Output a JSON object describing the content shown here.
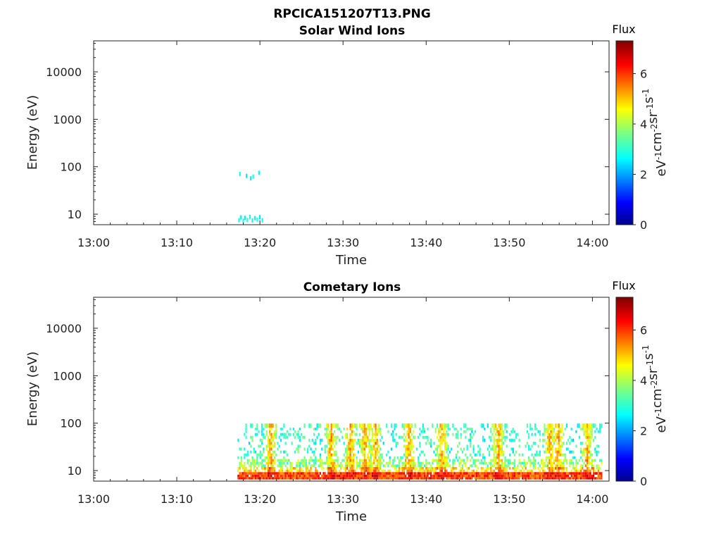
{
  "figure": {
    "title": "RPCICA151207T13.PNG"
  },
  "chart_data": [
    {
      "type": "heatmap",
      "title": "Solar Wind Ions",
      "xlabel": "Time",
      "ylabel": "Energy (eV)",
      "x_range": [
        "13:00",
        "14:02"
      ],
      "x_ticks": [
        "13:00",
        "13:10",
        "13:20",
        "13:30",
        "13:40",
        "13:50",
        "14:00"
      ],
      "y_scale": "log",
      "y_range": [
        6,
        45000
      ],
      "y_ticks": [
        "10",
        "100",
        "1000",
        "10000"
      ],
      "colorbar": {
        "title": "Flux",
        "units": "eV-1cm-2sr-1s-1",
        "range": [
          0,
          7.3
        ],
        "ticks": [
          "0",
          "2",
          "4",
          "6"
        ],
        "colormap": "jet"
      },
      "grid": false,
      "data_description": "Sparse low-level flux (~2.5-3.2) only between 13:17 and 13:21; energies ~7-9 eV and ~55-75 eV.",
      "cells": [
        {
          "t": 17.4,
          "e": 7.2,
          "v": 2.9
        },
        {
          "t": 17.6,
          "e": 8.3,
          "v": 2.7
        },
        {
          "t": 17.9,
          "e": 7.0,
          "v": 3.0
        },
        {
          "t": 18.1,
          "e": 8.1,
          "v": 2.6
        },
        {
          "t": 18.4,
          "e": 7.3,
          "v": 3.1
        },
        {
          "t": 18.7,
          "e": 8.5,
          "v": 2.8
        },
        {
          "t": 19.0,
          "e": 7.1,
          "v": 2.9
        },
        {
          "t": 19.3,
          "e": 8.0,
          "v": 2.7
        },
        {
          "t": 19.6,
          "e": 7.4,
          "v": 3.0
        },
        {
          "t": 19.9,
          "e": 8.4,
          "v": 2.6
        },
        {
          "t": 20.2,
          "e": 7.2,
          "v": 2.8
        },
        {
          "t": 17.5,
          "e": 68,
          "v": 2.8
        },
        {
          "t": 18.3,
          "e": 62,
          "v": 2.6
        },
        {
          "t": 18.8,
          "e": 55,
          "v": 2.7
        },
        {
          "t": 19.1,
          "e": 60,
          "v": 2.9
        },
        {
          "t": 19.8,
          "e": 72,
          "v": 2.7
        }
      ]
    },
    {
      "type": "heatmap",
      "title": "Cometary Ions",
      "xlabel": "Time",
      "ylabel": "Energy (eV)",
      "x_range": [
        "13:00",
        "14:02"
      ],
      "x_ticks": [
        "13:00",
        "13:10",
        "13:20",
        "13:30",
        "13:40",
        "13:50",
        "14:00"
      ],
      "y_scale": "log",
      "y_range": [
        6,
        45000
      ],
      "y_ticks": [
        "10",
        "100",
        "1000",
        "10000"
      ],
      "colorbar": {
        "title": "Flux",
        "units": "eV-1cm-2sr-1s-1",
        "range": [
          0,
          7.3
        ],
        "ticks": [
          "0",
          "2",
          "4",
          "6"
        ],
        "colormap": "jet"
      },
      "grid": false,
      "data_description": "Data from 13:17 to 14:01; strong flux (5-6.5) at 6-10 eV, weaker (2.5-4.5) up to ~80 eV, with vertical bursts near 13:21, 13:28-13:34, 13:38, 13:42, 13:49, 13:55, 13:59.",
      "active_range_min": [
        17.3,
        61.0
      ],
      "bursts_min": [
        21.2,
        28.5,
        30.8,
        32.6,
        33.8,
        37.8,
        41.8,
        48.6,
        54.8,
        55.8,
        59.3
      ]
    }
  ]
}
